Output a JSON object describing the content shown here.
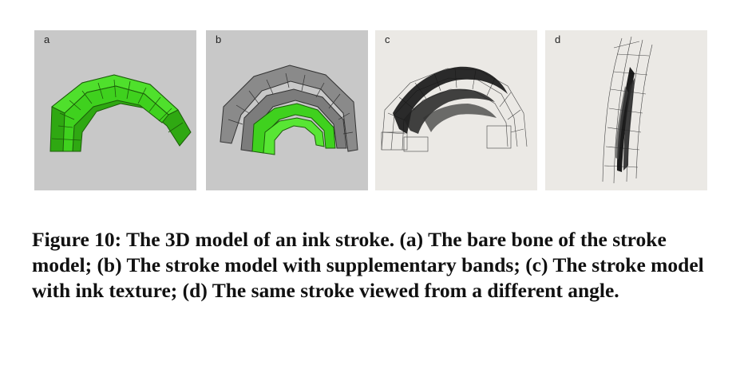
{
  "figure": {
    "panels": [
      {
        "label": "a",
        "description_icon": "green-3d-stroke-skeleton"
      },
      {
        "label": "b",
        "description_icon": "green-gray-stroke-with-bands"
      },
      {
        "label": "c",
        "description_icon": "ink-textured-stroke"
      },
      {
        "label": "d",
        "description_icon": "ink-stroke-side-view"
      }
    ],
    "caption": "Figure 10: The 3D model of an ink stroke. (a) The bare bone of the stroke model; (b) The stroke model with supplementary bands; (c) The stroke model with ink texture; (d) The same stroke viewed from a different angle.",
    "colors": {
      "green": "#3fd11e",
      "gray_bg": "#c8c8c8",
      "paper_bg": "#ebe9e5",
      "ink": "#111111"
    }
  }
}
